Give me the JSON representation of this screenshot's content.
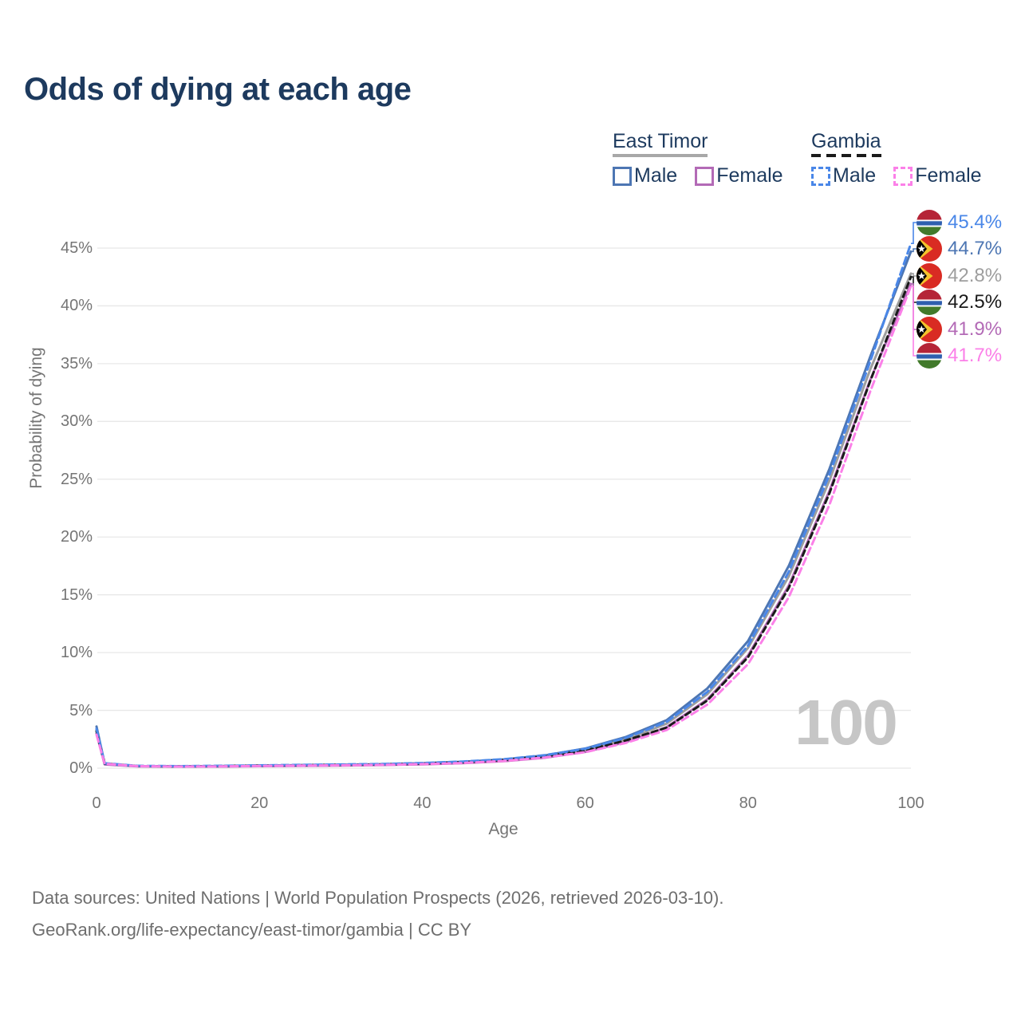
{
  "title": "Odds of dying at each age",
  "watermark": "100",
  "footer": {
    "line1": "Data sources: United Nations | World Population Prospects (2026, retrieved 2026-03-10).",
    "line2": "GeoRank.org/life-expectancy/east-timor/gambia | CC BY"
  },
  "colors": {
    "title_text": "#1d3a5e",
    "axis_text": "#757575",
    "gridline": "#e8e8e8",
    "watermark": "#c6c6c6",
    "east_timor_male": "#4d76b3",
    "east_timor_female": "#b36ab6",
    "east_timor_both": "#9e9e9e",
    "gambia_male": "#4a87e8",
    "gambia_female": "#fb80e8",
    "gambia_both": "#1a1a1a"
  },
  "legend": {
    "groups": [
      {
        "name": "East Timor",
        "line_style": "solid",
        "underline_color": "#a8a8a8",
        "items": [
          {
            "label": "Male",
            "color": "#4d76b3",
            "dashed": false
          },
          {
            "label": "Female",
            "color": "#b36ab6",
            "dashed": false
          }
        ]
      },
      {
        "name": "Gambia",
        "line_style": "dashed",
        "underline_color": "#1a1a1a",
        "items": [
          {
            "label": "Male",
            "color": "#4a87e8",
            "dashed": true
          },
          {
            "label": "Female",
            "color": "#fb80e8",
            "dashed": true
          }
        ]
      }
    ]
  },
  "chart_data": {
    "type": "line",
    "title": "Odds of dying at each age",
    "xlabel": "Age",
    "ylabel": "Probability of dying",
    "x_ticks": [
      0,
      20,
      40,
      60,
      80,
      100
    ],
    "y_ticks_percent": [
      0,
      5,
      10,
      15,
      20,
      25,
      30,
      35,
      40,
      45
    ],
    "xlim": [
      0,
      100
    ],
    "ylim_percent": [
      0,
      47
    ],
    "grid": "horizontal-only",
    "x": [
      0,
      1,
      5,
      10,
      15,
      20,
      25,
      30,
      35,
      40,
      45,
      50,
      55,
      60,
      65,
      70,
      75,
      80,
      85,
      90,
      95,
      100
    ],
    "series": [
      {
        "name": "East Timor Both",
        "country": "east-timor",
        "sex": "both",
        "style": "solid",
        "color": "#9e9e9e",
        "end_label": "42.8%",
        "values": [
          3.3,
          0.35,
          0.17,
          0.14,
          0.16,
          0.2,
          0.23,
          0.27,
          0.31,
          0.38,
          0.49,
          0.68,
          1.0,
          1.55,
          2.48,
          3.85,
          6.4,
          10.4,
          16.6,
          24.9,
          34.5,
          42.8
        ]
      },
      {
        "name": "East Timor Female",
        "country": "east-timor",
        "sex": "female",
        "style": "solid",
        "color": "#b36ab6",
        "end_label": "41.9%",
        "values": [
          3.0,
          0.32,
          0.15,
          0.13,
          0.14,
          0.17,
          0.2,
          0.23,
          0.27,
          0.33,
          0.43,
          0.6,
          0.9,
          1.4,
          2.25,
          3.55,
          5.95,
          9.75,
          15.8,
          24.0,
          33.6,
          41.9
        ]
      },
      {
        "name": "East Timor Male",
        "country": "east-timor",
        "sex": "male",
        "style": "solid",
        "color": "#4d76b3",
        "end_label": "44.7%",
        "values": [
          3.6,
          0.38,
          0.18,
          0.15,
          0.18,
          0.22,
          0.26,
          0.3,
          0.34,
          0.42,
          0.55,
          0.75,
          1.1,
          1.7,
          2.7,
          4.15,
          6.9,
          11.0,
          17.5,
          25.9,
          35.6,
          44.7
        ]
      },
      {
        "name": "Gambia Both",
        "country": "gambia",
        "sex": "both",
        "style": "dashed",
        "color": "#1a1a1a",
        "end_label": "42.5%",
        "values": [
          3.2,
          0.4,
          0.18,
          0.15,
          0.18,
          0.22,
          0.25,
          0.29,
          0.32,
          0.39,
          0.51,
          0.7,
          1.02,
          1.52,
          2.4,
          3.5,
          5.85,
          9.6,
          15.6,
          23.8,
          33.5,
          42.5
        ]
      },
      {
        "name": "Gambia Male",
        "country": "gambia",
        "sex": "male",
        "style": "dashed",
        "color": "#4a87e8",
        "end_label": "45.4%",
        "values": [
          3.4,
          0.42,
          0.2,
          0.17,
          0.2,
          0.24,
          0.28,
          0.32,
          0.36,
          0.44,
          0.57,
          0.77,
          1.12,
          1.68,
          2.62,
          4.0,
          6.6,
          10.6,
          17.0,
          25.4,
          35.2,
          45.4
        ]
      },
      {
        "name": "Gambia Female",
        "country": "gambia",
        "sex": "female",
        "style": "dashed",
        "color": "#fb80e8",
        "end_label": "41.7%",
        "values": [
          2.9,
          0.37,
          0.17,
          0.14,
          0.15,
          0.19,
          0.22,
          0.25,
          0.28,
          0.35,
          0.45,
          0.62,
          0.92,
          1.38,
          2.18,
          3.3,
          5.5,
          9.0,
          14.8,
          22.8,
          32.6,
          41.7
        ]
      }
    ],
    "end_labels": [
      {
        "value": "45.4%",
        "series": "Gambia Male",
        "flag": "gambia",
        "color": "#4a87e8"
      },
      {
        "value": "44.7%",
        "series": "East Timor Male",
        "flag": "east-timor",
        "color": "#4d76b3"
      },
      {
        "value": "42.8%",
        "series": "East Timor Both",
        "flag": "east-timor",
        "color": "#9e9e9e"
      },
      {
        "value": "42.5%",
        "series": "Gambia Both",
        "flag": "gambia",
        "color": "#1a1a1a"
      },
      {
        "value": "41.9%",
        "series": "East Timor Female",
        "flag": "east-timor",
        "color": "#b36ab6"
      },
      {
        "value": "41.7%",
        "series": "Gambia Female",
        "flag": "gambia",
        "color": "#fb80e8"
      }
    ]
  }
}
